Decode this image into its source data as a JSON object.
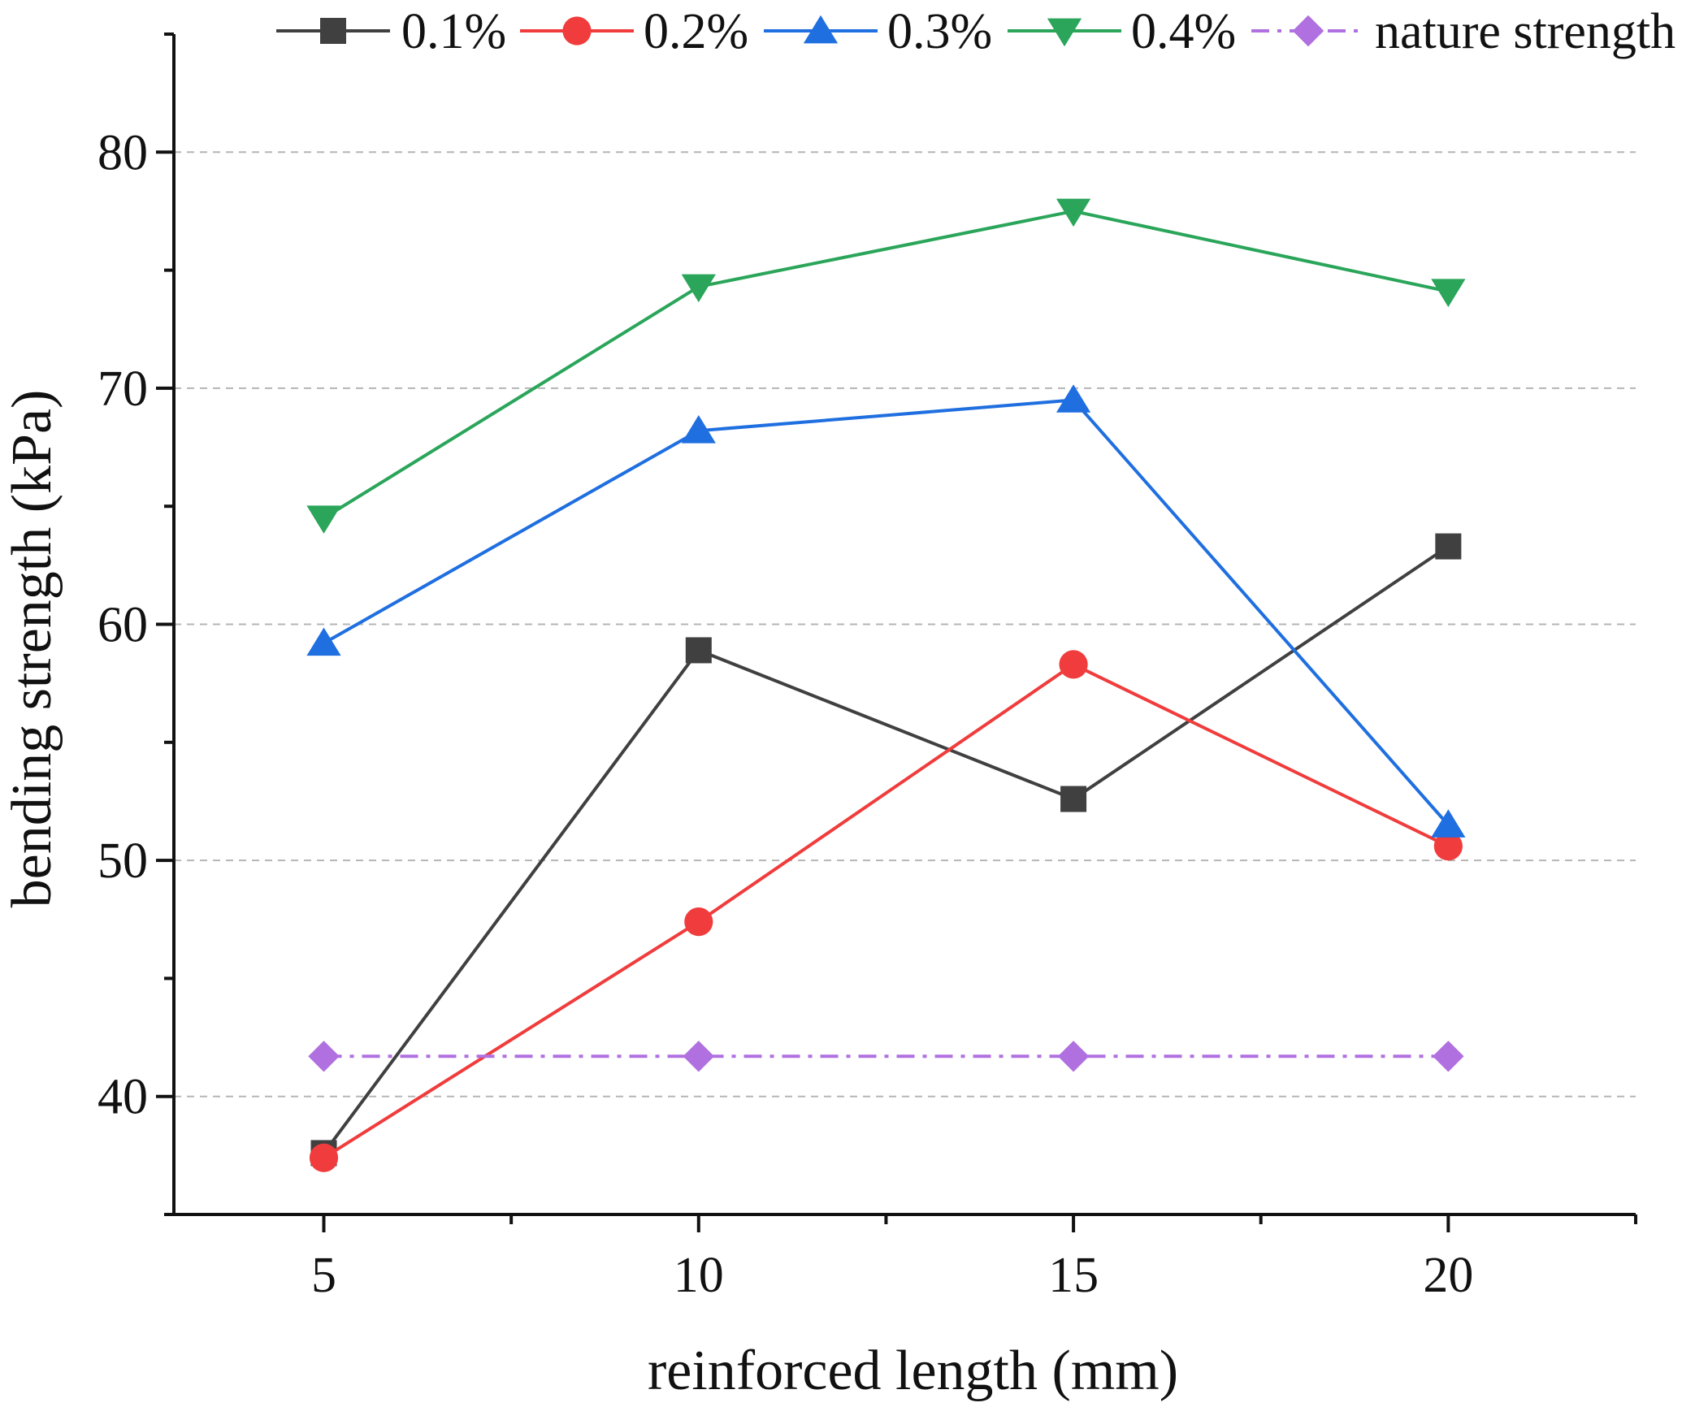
{
  "chart_data": {
    "type": "line",
    "xlabel": "reinforced length (mm)",
    "ylabel": "bending strength (kPa)",
    "x": [
      5,
      10,
      15,
      20
    ],
    "x_ticks": [
      5,
      10,
      15,
      20
    ],
    "y_ticks": [
      40,
      50,
      60,
      70,
      80
    ],
    "xlim": [
      3,
      22.5
    ],
    "ylim": [
      35,
      85
    ],
    "grid": "horizontal dashed",
    "legend_position": "top",
    "series": [
      {
        "name": "0.1%",
        "values": [
          37.6,
          58.9,
          52.6,
          63.3
        ],
        "color": "#404040",
        "marker": "square",
        "line": "solid"
      },
      {
        "name": "0.2%",
        "values": [
          37.4,
          47.4,
          58.3,
          50.6
        ],
        "color": "#f03c3c",
        "marker": "circle",
        "line": "solid"
      },
      {
        "name": "0.3%",
        "values": [
          59.2,
          68.2,
          69.5,
          51.5
        ],
        "color": "#1f6fe0",
        "marker": "triangle-up",
        "line": "solid"
      },
      {
        "name": "0.4%",
        "values": [
          64.5,
          74.3,
          77.5,
          74.1
        ],
        "color": "#2aa55a",
        "marker": "triangle-down",
        "line": "solid"
      },
      {
        "name": "nature strength",
        "values": [
          41.7,
          41.7,
          41.7,
          41.7
        ],
        "color": "#b070e0",
        "marker": "diamond",
        "line": "dashdot"
      }
    ]
  }
}
